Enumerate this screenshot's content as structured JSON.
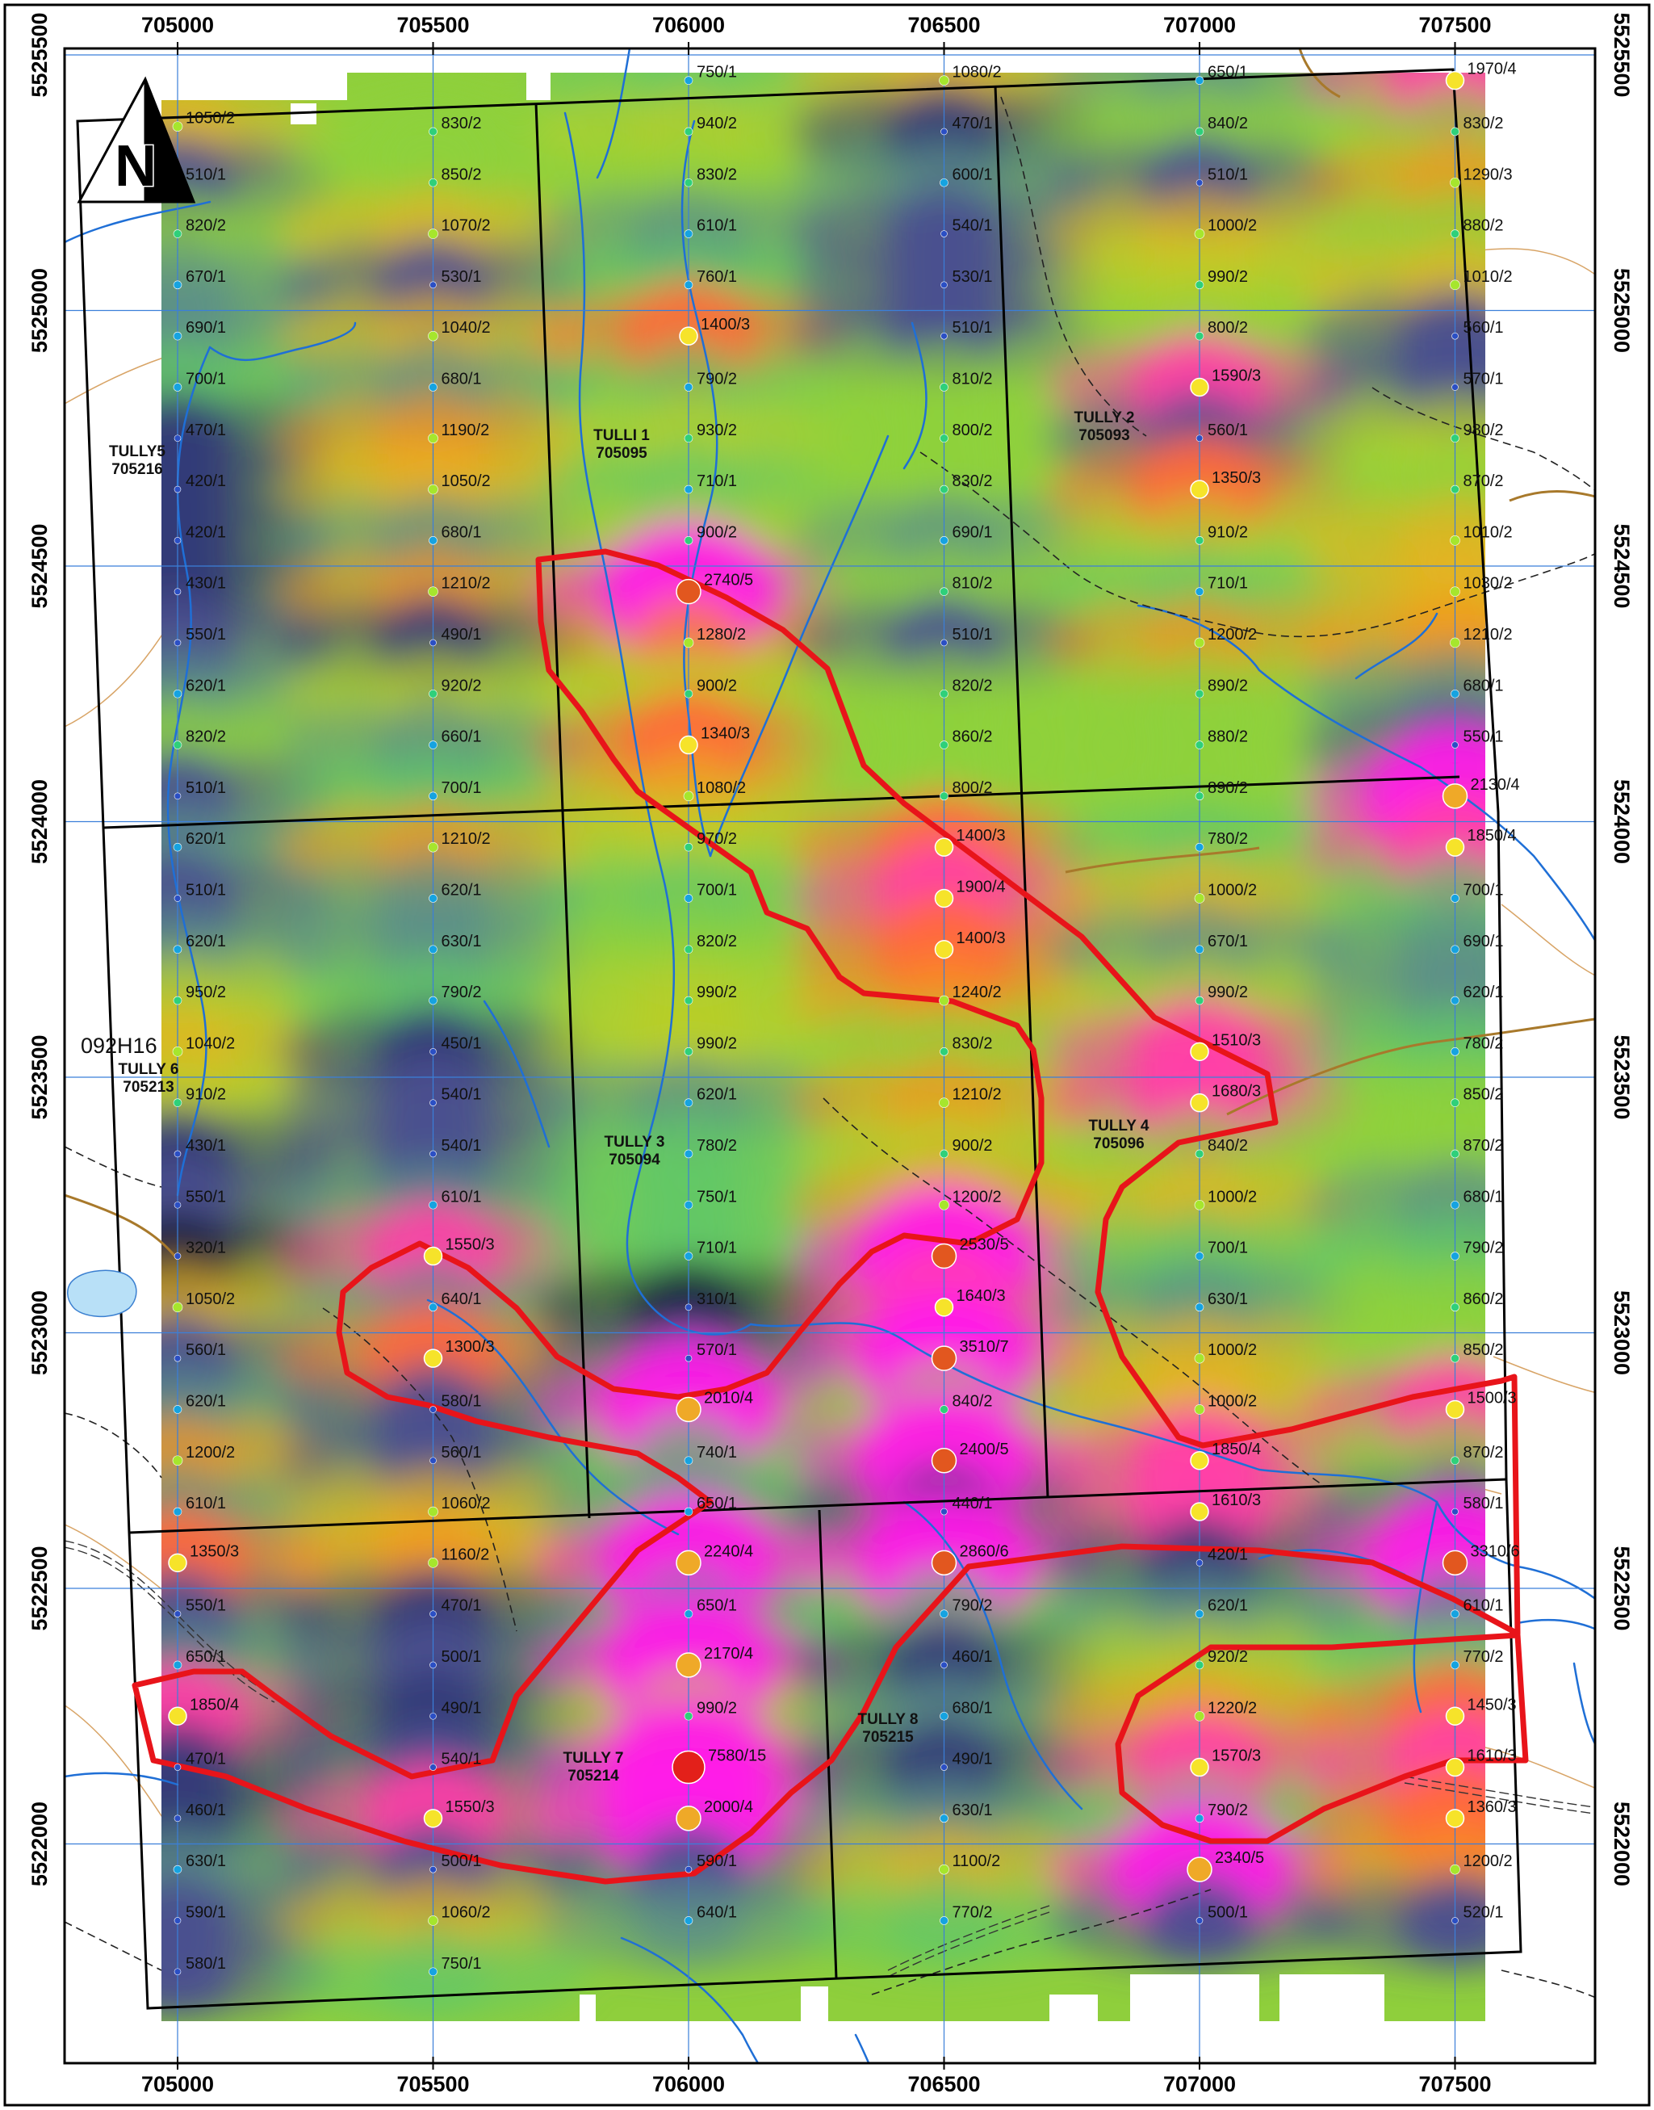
{
  "map": {
    "x_ticks": [
      "705000",
      "705500",
      "706000",
      "706500",
      "707000",
      "707500"
    ],
    "y_ticks": [
      "5525500",
      "5525000",
      "5524500",
      "5524000",
      "5523500",
      "5523000",
      "5522500",
      "5522000"
    ],
    "north_label": "N",
    "sheet_label": "092H16",
    "colors": {
      "claim_outline": "#000000",
      "anomaly_outline": "#e8141a",
      "stream": "#1f6fd6",
      "contour": "#d49a55",
      "grid_line": "#3b7fd9",
      "lake": "#b8e0f7"
    },
    "claims": [
      {
        "name": "TULLY5",
        "number": "705216"
      },
      {
        "name": "TULLI 1",
        "number": "705095"
      },
      {
        "name": "TULLY 2",
        "number": "705093"
      },
      {
        "name": "TULLY 3",
        "number": "705094"
      },
      {
        "name": "TULLY 4",
        "number": "705096"
      },
      {
        "name": "TULLY 6",
        "number": "705213"
      },
      {
        "name": "TULLY 7",
        "number": "705214"
      },
      {
        "name": "TULLY 8",
        "number": "705215"
      }
    ],
    "sample_lines": [
      {
        "easting": 705000,
        "samples": [
          {
            "n": 5525360,
            "v": "1050/2"
          },
          {
            "n": 5525250,
            "v": "510/1"
          },
          {
            "n": 5525150,
            "v": "820/2"
          },
          {
            "n": 5525050,
            "v": "670/1"
          },
          {
            "n": 5524950,
            "v": "690/1"
          },
          {
            "n": 5524850,
            "v": "700/1"
          },
          {
            "n": 5524750,
            "v": "470/1"
          },
          {
            "n": 5524650,
            "v": "420/1"
          },
          {
            "n": 5524550,
            "v": "420/1"
          },
          {
            "n": 5524450,
            "v": "430/1"
          },
          {
            "n": 5524350,
            "v": "550/1"
          },
          {
            "n": 5524250,
            "v": "620/1"
          },
          {
            "n": 5524150,
            "v": "820/2"
          },
          {
            "n": 5524050,
            "v": "510/1"
          },
          {
            "n": 5523950,
            "v": "620/1"
          },
          {
            "n": 5523850,
            "v": "510/1"
          },
          {
            "n": 5523750,
            "v": "620/1"
          },
          {
            "n": 5523650,
            "v": "950/2"
          },
          {
            "n": 5523550,
            "v": "1040/2"
          },
          {
            "n": 5523450,
            "v": "910/2"
          },
          {
            "n": 5523350,
            "v": "430/1"
          },
          {
            "n": 5523250,
            "v": "550/1"
          },
          {
            "n": 5523150,
            "v": "320/1"
          },
          {
            "n": 5523050,
            "v": "1050/2"
          },
          {
            "n": 5522950,
            "v": "560/1"
          },
          {
            "n": 5522850,
            "v": "620/1"
          },
          {
            "n": 5522750,
            "v": "1200/2"
          },
          {
            "n": 5522650,
            "v": "610/1"
          },
          {
            "n": 5522550,
            "v": "1350/3"
          },
          {
            "n": 5522450,
            "v": "550/1"
          },
          {
            "n": 5522350,
            "v": "650/1"
          },
          {
            "n": 5522250,
            "v": "1850/4"
          },
          {
            "n": 5522150,
            "v": "470/1"
          },
          {
            "n": 5522050,
            "v": "460/1"
          },
          {
            "n": 5521950,
            "v": "630/1"
          },
          {
            "n": 5521850,
            "v": "590/1"
          },
          {
            "n": 5521750,
            "v": "580/1"
          }
        ]
      },
      {
        "easting": 705500,
        "samples": [
          {
            "n": 5525350,
            "v": "830/2"
          },
          {
            "n": 5525250,
            "v": "850/2"
          },
          {
            "n": 5525150,
            "v": "1070/2"
          },
          {
            "n": 5525050,
            "v": "530/1"
          },
          {
            "n": 5524950,
            "v": "1040/2"
          },
          {
            "n": 5524850,
            "v": "680/1"
          },
          {
            "n": 5524750,
            "v": "1190/2"
          },
          {
            "n": 5524650,
            "v": "1050/2"
          },
          {
            "n": 5524550,
            "v": "680/1"
          },
          {
            "n": 5524450,
            "v": "1210/2"
          },
          {
            "n": 5524350,
            "v": "490/1"
          },
          {
            "n": 5524250,
            "v": "920/2"
          },
          {
            "n": 5524150,
            "v": "660/1"
          },
          {
            "n": 5524050,
            "v": "700/1"
          },
          {
            "n": 5523950,
            "v": "1210/2"
          },
          {
            "n": 5523850,
            "v": "620/1"
          },
          {
            "n": 5523750,
            "v": "630/1"
          },
          {
            "n": 5523650,
            "v": "790/2"
          },
          {
            "n": 5523550,
            "v": "450/1"
          },
          {
            "n": 5523450,
            "v": "540/1"
          },
          {
            "n": 5523350,
            "v": "540/1"
          },
          {
            "n": 5523250,
            "v": "610/1"
          },
          {
            "n": 5523150,
            "v": "1550/3"
          },
          {
            "n": 5523050,
            "v": "640/1"
          },
          {
            "n": 5522950,
            "v": "1300/3"
          },
          {
            "n": 5522850,
            "v": "580/1"
          },
          {
            "n": 5522750,
            "v": "560/1"
          },
          {
            "n": 5522650,
            "v": "1060/2"
          },
          {
            "n": 5522550,
            "v": "1160/2"
          },
          {
            "n": 5522450,
            "v": "470/1"
          },
          {
            "n": 5522350,
            "v": "500/1"
          },
          {
            "n": 5522250,
            "v": "490/1"
          },
          {
            "n": 5522150,
            "v": "540/1"
          },
          {
            "n": 5522050,
            "v": "1550/3"
          },
          {
            "n": 5521950,
            "v": "500/1"
          },
          {
            "n": 5521850,
            "v": "1060/2"
          },
          {
            "n": 5521750,
            "v": "750/1"
          }
        ]
      },
      {
        "easting": 706000,
        "samples": [
          {
            "n": 5525450,
            "v": "750/1"
          },
          {
            "n": 5525350,
            "v": "940/2"
          },
          {
            "n": 5525250,
            "v": "830/2"
          },
          {
            "n": 5525150,
            "v": "610/1"
          },
          {
            "n": 5525050,
            "v": "760/1"
          },
          {
            "n": 5524950,
            "v": "1400/3"
          },
          {
            "n": 5524850,
            "v": "790/2"
          },
          {
            "n": 5524750,
            "v": "930/2"
          },
          {
            "n": 5524650,
            "v": "710/1"
          },
          {
            "n": 5524550,
            "v": "900/2"
          },
          {
            "n": 5524450,
            "v": "2740/5"
          },
          {
            "n": 5524350,
            "v": "1280/2"
          },
          {
            "n": 5524250,
            "v": "900/2"
          },
          {
            "n": 5524150,
            "v": "1340/3"
          },
          {
            "n": 5524050,
            "v": "1080/2"
          },
          {
            "n": 5523950,
            "v": "970/2"
          },
          {
            "n": 5523850,
            "v": "700/1"
          },
          {
            "n": 5523750,
            "v": "820/2"
          },
          {
            "n": 5523650,
            "v": "990/2"
          },
          {
            "n": 5523550,
            "v": "990/2"
          },
          {
            "n": 5523450,
            "v": "620/1"
          },
          {
            "n": 5523350,
            "v": "780/2"
          },
          {
            "n": 5523250,
            "v": "750/1"
          },
          {
            "n": 5523150,
            "v": "710/1"
          },
          {
            "n": 5523050,
            "v": "310/1"
          },
          {
            "n": 5522950,
            "v": "570/1"
          },
          {
            "n": 5522850,
            "v": "2010/4"
          },
          {
            "n": 5522750,
            "v": "740/1"
          },
          {
            "n": 5522650,
            "v": "650/1"
          },
          {
            "n": 5522550,
            "v": "2240/4"
          },
          {
            "n": 5522450,
            "v": "650/1"
          },
          {
            "n": 5522350,
            "v": "2170/4"
          },
          {
            "n": 5522250,
            "v": "990/2"
          },
          {
            "n": 5522150,
            "v": "7580/15"
          },
          {
            "n": 5522050,
            "v": "2000/4"
          },
          {
            "n": 5521950,
            "v": "590/1"
          },
          {
            "n": 5521850,
            "v": "640/1"
          }
        ]
      },
      {
        "easting": 706500,
        "samples": [
          {
            "n": 5525450,
            "v": "1080/2"
          },
          {
            "n": 5525350,
            "v": "470/1"
          },
          {
            "n": 5525250,
            "v": "600/1"
          },
          {
            "n": 5525150,
            "v": "540/1"
          },
          {
            "n": 5525050,
            "v": "530/1"
          },
          {
            "n": 5524950,
            "v": "510/1"
          },
          {
            "n": 5524850,
            "v": "810/2"
          },
          {
            "n": 5524750,
            "v": "800/2"
          },
          {
            "n": 5524650,
            "v": "830/2"
          },
          {
            "n": 5524550,
            "v": "690/1"
          },
          {
            "n": 5524450,
            "v": "810/2"
          },
          {
            "n": 5524350,
            "v": "510/1"
          },
          {
            "n": 5524250,
            "v": "820/2"
          },
          {
            "n": 5524150,
            "v": "860/2"
          },
          {
            "n": 5524050,
            "v": "800/2"
          },
          {
            "n": 5523950,
            "v": "1400/3"
          },
          {
            "n": 5523850,
            "v": "1900/4"
          },
          {
            "n": 5523750,
            "v": "1400/3"
          },
          {
            "n": 5523650,
            "v": "1240/2"
          },
          {
            "n": 5523550,
            "v": "830/2"
          },
          {
            "n": 5523450,
            "v": "1210/2"
          },
          {
            "n": 5523350,
            "v": "900/2"
          },
          {
            "n": 5523250,
            "v": "1200/2"
          },
          {
            "n": 5523150,
            "v": "2530/5"
          },
          {
            "n": 5523050,
            "v": "1640/3"
          },
          {
            "n": 5522950,
            "v": "3510/7"
          },
          {
            "n": 5522850,
            "v": "840/2"
          },
          {
            "n": 5522750,
            "v": "2400/5"
          },
          {
            "n": 5522650,
            "v": "440/1"
          },
          {
            "n": 5522550,
            "v": "2860/6"
          },
          {
            "n": 5522450,
            "v": "790/2"
          },
          {
            "n": 5522350,
            "v": "460/1"
          },
          {
            "n": 5522250,
            "v": "680/1"
          },
          {
            "n": 5522150,
            "v": "490/1"
          },
          {
            "n": 5522050,
            "v": "630/1"
          },
          {
            "n": 5521950,
            "v": "1100/2"
          },
          {
            "n": 5521850,
            "v": "770/2"
          }
        ]
      },
      {
        "easting": 707000,
        "samples": [
          {
            "n": 5525450,
            "v": "650/1"
          },
          {
            "n": 5525350,
            "v": "840/2"
          },
          {
            "n": 5525250,
            "v": "510/1"
          },
          {
            "n": 5525150,
            "v": "1000/2"
          },
          {
            "n": 5525050,
            "v": "990/2"
          },
          {
            "n": 5524950,
            "v": "800/2"
          },
          {
            "n": 5524850,
            "v": "1590/3"
          },
          {
            "n": 5524750,
            "v": "560/1"
          },
          {
            "n": 5524650,
            "v": "1350/3"
          },
          {
            "n": 5524550,
            "v": "910/2"
          },
          {
            "n": 5524450,
            "v": "710/1"
          },
          {
            "n": 5524350,
            "v": "1200/2"
          },
          {
            "n": 5524250,
            "v": "890/2"
          },
          {
            "n": 5524150,
            "v": "880/2"
          },
          {
            "n": 5524050,
            "v": "890/2"
          },
          {
            "n": 5523950,
            "v": "780/2"
          },
          {
            "n": 5523850,
            "v": "1000/2"
          },
          {
            "n": 5523750,
            "v": "670/1"
          },
          {
            "n": 5523650,
            "v": "990/2"
          },
          {
            "n": 5523550,
            "v": "1510/3"
          },
          {
            "n": 5523450,
            "v": "1680/3"
          },
          {
            "n": 5523350,
            "v": "840/2"
          },
          {
            "n": 5523250,
            "v": "1000/2"
          },
          {
            "n": 5523150,
            "v": "700/1"
          },
          {
            "n": 5523050,
            "v": "630/1"
          },
          {
            "n": 5522950,
            "v": "1000/2"
          },
          {
            "n": 5522850,
            "v": "1000/2"
          },
          {
            "n": 5522750,
            "v": "1850/4"
          },
          {
            "n": 5522650,
            "v": "1610/3"
          },
          {
            "n": 5522550,
            "v": "420/1"
          },
          {
            "n": 5522450,
            "v": "620/1"
          },
          {
            "n": 5522350,
            "v": "920/2"
          },
          {
            "n": 5522250,
            "v": "1220/2"
          },
          {
            "n": 5522150,
            "v": "1570/3"
          },
          {
            "n": 5522050,
            "v": "790/2"
          },
          {
            "n": 5521950,
            "v": "2340/5"
          },
          {
            "n": 5521850,
            "v": "500/1"
          }
        ]
      },
      {
        "easting": 707500,
        "samples": [
          {
            "n": 5525450,
            "v": "1970/4"
          },
          {
            "n": 5525350,
            "v": "830/2"
          },
          {
            "n": 5525250,
            "v": "1290/3"
          },
          {
            "n": 5525150,
            "v": "880/2"
          },
          {
            "n": 5525050,
            "v": "1010/2"
          },
          {
            "n": 5524950,
            "v": "560/1"
          },
          {
            "n": 5524850,
            "v": "570/1"
          },
          {
            "n": 5524750,
            "v": "980/2"
          },
          {
            "n": 5524650,
            "v": "870/2"
          },
          {
            "n": 5524550,
            "v": "1010/2"
          },
          {
            "n": 5524450,
            "v": "1030/2"
          },
          {
            "n": 5524350,
            "v": "1210/2"
          },
          {
            "n": 5524250,
            "v": "680/1"
          },
          {
            "n": 5524150,
            "v": "550/1"
          },
          {
            "n": 5524050,
            "v": "2130/4"
          },
          {
            "n": 5523950,
            "v": "1850/4"
          },
          {
            "n": 5523850,
            "v": "700/1"
          },
          {
            "n": 5523750,
            "v": "690/1"
          },
          {
            "n": 5523650,
            "v": "620/1"
          },
          {
            "n": 5523550,
            "v": "780/2"
          },
          {
            "n": 5523450,
            "v": "850/2"
          },
          {
            "n": 5523350,
            "v": "870/2"
          },
          {
            "n": 5523250,
            "v": "680/1"
          },
          {
            "n": 5523150,
            "v": "790/2"
          },
          {
            "n": 5523050,
            "v": "860/2"
          },
          {
            "n": 5522950,
            "v": "850/2"
          },
          {
            "n": 5522850,
            "v": "1500/3"
          },
          {
            "n": 5522750,
            "v": "870/2"
          },
          {
            "n": 5522650,
            "v": "580/1"
          },
          {
            "n": 5522550,
            "v": "3310/6"
          },
          {
            "n": 5522450,
            "v": "610/1"
          },
          {
            "n": 5522350,
            "v": "770/2"
          },
          {
            "n": 5522250,
            "v": "1450/3"
          },
          {
            "n": 5522150,
            "v": "1610/3"
          },
          {
            "n": 5522050,
            "v": "1360/3"
          },
          {
            "n": 5521950,
            "v": "1200/2"
          },
          {
            "n": 5521850,
            "v": "520/1"
          }
        ]
      }
    ]
  }
}
